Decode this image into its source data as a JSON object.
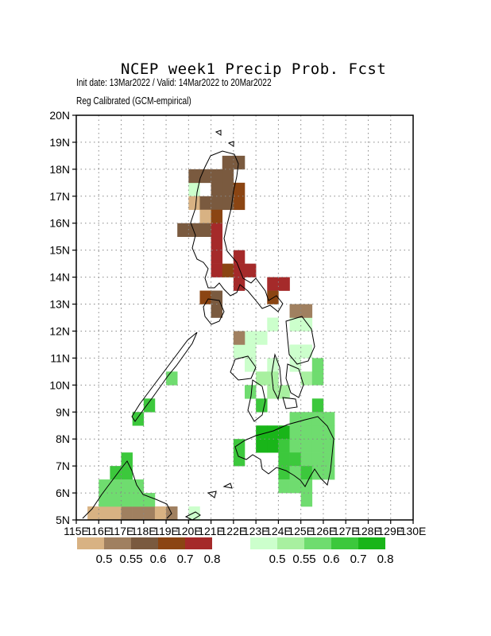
{
  "title": "NCEP week1 Precip Prob. Fcst",
  "subtitle": "Init date: 13Mar2022 / Valid: 14Mar2022 to 20Mar2022",
  "method": "Reg Calibrated (GCM-empirical)",
  "map": {
    "lon_range": [
      115,
      130
    ],
    "lat_range": [
      5,
      20
    ],
    "grid": "dotted",
    "lat_ticks": [
      "5N",
      "6N",
      "7N",
      "8N",
      "9N",
      "10N",
      "11N",
      "12N",
      "13N",
      "14N",
      "15N",
      "16N",
      "17N",
      "18N",
      "19N",
      "20N"
    ],
    "lon_ticks": [
      "115E",
      "116E",
      "117E",
      "118E",
      "119E",
      "120E",
      "121E",
      "122E",
      "123E",
      "124E",
      "125E",
      "126E",
      "127E",
      "128E",
      "129E",
      "130E"
    ]
  },
  "legend_dry": {
    "colors": [
      "#d8b283",
      "#a08060",
      "#7a5a3f",
      "#8b4513",
      "#a52a2a"
    ],
    "labels": [
      "0.5",
      "0.55",
      "0.6",
      "0.7",
      "0.8"
    ]
  },
  "legend_wet": {
    "colors": [
      "#ccffcc",
      "#a8f0a0",
      "#6fdc6f",
      "#3cc83c",
      "#19b519"
    ],
    "labels": [
      "0.5",
      "0.55",
      "0.6",
      "0.7",
      "0.8"
    ]
  },
  "cells_dry": [
    [
      120.0,
      17.5,
      2
    ],
    [
      120.5,
      17.5,
      2
    ],
    [
      121.0,
      17.5,
      2
    ],
    [
      121.5,
      17.5,
      2
    ],
    [
      121.5,
      18.0,
      2
    ],
    [
      122.0,
      18.0,
      2
    ],
    [
      121.0,
      17.0,
      2
    ],
    [
      121.5,
      17.0,
      2
    ],
    [
      122.0,
      17.0,
      3
    ],
    [
      122.0,
      16.5,
      3
    ],
    [
      120.0,
      16.5,
      0
    ],
    [
      120.5,
      16.5,
      2
    ],
    [
      121.0,
      16.5,
      2
    ],
    [
      121.5,
      16.5,
      2
    ],
    [
      120.5,
      16.0,
      0
    ],
    [
      121.0,
      16.0,
      3
    ],
    [
      119.5,
      15.5,
      2
    ],
    [
      120.0,
      15.5,
      2
    ],
    [
      120.5,
      15.5,
      2
    ],
    [
      121.0,
      15.5,
      4
    ],
    [
      121.0,
      15.0,
      4
    ],
    [
      121.0,
      14.5,
      4
    ],
    [
      121.0,
      14.0,
      4
    ],
    [
      121.5,
      14.0,
      3
    ],
    [
      122.0,
      14.0,
      4
    ],
    [
      122.5,
      14.0,
      4
    ],
    [
      122.0,
      14.5,
      4
    ],
    [
      122.0,
      13.5,
      4
    ],
    [
      123.5,
      13.5,
      4
    ],
    [
      124.0,
      13.5,
      4
    ],
    [
      120.5,
      13.0,
      3
    ],
    [
      121.0,
      13.0,
      2
    ],
    [
      123.5,
      13.0,
      3
    ],
    [
      121.0,
      12.5,
      2
    ],
    [
      124.5,
      12.5,
      1
    ],
    [
      125.0,
      12.5,
      1
    ],
    [
      122.0,
      11.5,
      1
    ]
  ],
  "cells_wet": [
    [
      120.0,
      17.0,
      0
    ],
    [
      123.5,
      12.0,
      0
    ],
    [
      124.5,
      12.0,
      0
    ],
    [
      125.0,
      12.0,
      0
    ],
    [
      122.0,
      11.5,
      1
    ],
    [
      122.5,
      11.5,
      0
    ],
    [
      123.0,
      11.5,
      0
    ],
    [
      122.0,
      11.0,
      0
    ],
    [
      122.5,
      11.0,
      0
    ],
    [
      124.5,
      11.0,
      0
    ],
    [
      125.0,
      11.0,
      0
    ],
    [
      122.5,
      10.5,
      0
    ],
    [
      123.5,
      10.5,
      0
    ],
    [
      124.5,
      10.5,
      0
    ],
    [
      125.5,
      10.5,
      2
    ],
    [
      119.0,
      10.0,
      2
    ],
    [
      123.0,
      10.0,
      1
    ],
    [
      123.5,
      10.0,
      1
    ],
    [
      125.0,
      10.0,
      1
    ],
    [
      125.5,
      10.0,
      2
    ],
    [
      122.5,
      9.5,
      2
    ],
    [
      123.5,
      9.5,
      1
    ],
    [
      124.0,
      9.5,
      1
    ],
    [
      118.0,
      9.0,
      3
    ],
    [
      123.0,
      9.0,
      3
    ],
    [
      125.5,
      9.0,
      3
    ],
    [
      117.5,
      8.5,
      3
    ],
    [
      124.5,
      8.5,
      2
    ],
    [
      125.0,
      8.5,
      2
    ],
    [
      125.5,
      8.5,
      2
    ],
    [
      126.0,
      8.5,
      2
    ],
    [
      123.0,
      8.0,
      4
    ],
    [
      123.5,
      8.0,
      4
    ],
    [
      124.0,
      8.0,
      4
    ],
    [
      124.5,
      8.0,
      2
    ],
    [
      125.0,
      8.0,
      2
    ],
    [
      125.5,
      8.0,
      2
    ],
    [
      126.0,
      8.0,
      2
    ],
    [
      122.0,
      7.5,
      3
    ],
    [
      123.0,
      7.5,
      4
    ],
    [
      123.5,
      7.5,
      4
    ],
    [
      124.0,
      7.5,
      3
    ],
    [
      124.5,
      7.5,
      2
    ],
    [
      125.0,
      7.5,
      2
    ],
    [
      125.5,
      7.5,
      2
    ],
    [
      126.0,
      7.5,
      2
    ],
    [
      117.0,
      7.0,
      3
    ],
    [
      122.0,
      7.0,
      3
    ],
    [
      124.0,
      7.0,
      3
    ],
    [
      124.5,
      7.0,
      3
    ],
    [
      125.0,
      7.0,
      2
    ],
    [
      125.5,
      7.0,
      2
    ],
    [
      126.0,
      7.0,
      2
    ],
    [
      116.5,
      6.5,
      3
    ],
    [
      117.0,
      6.5,
      3
    ],
    [
      124.0,
      6.5,
      3
    ],
    [
      124.5,
      6.5,
      2
    ],
    [
      125.0,
      6.5,
      3
    ],
    [
      125.5,
      6.5,
      2
    ],
    [
      126.0,
      6.5,
      2
    ],
    [
      116.0,
      6.0,
      2
    ],
    [
      116.5,
      6.0,
      2
    ],
    [
      117.0,
      6.0,
      2
    ],
    [
      117.5,
      6.0,
      2
    ],
    [
      124.0,
      6.0,
      2
    ],
    [
      124.5,
      6.0,
      2
    ],
    [
      125.0,
      6.0,
      2
    ],
    [
      116.0,
      5.5,
      2
    ],
    [
      116.5,
      5.5,
      2
    ],
    [
      117.0,
      5.5,
      2
    ],
    [
      117.5,
      5.5,
      2
    ],
    [
      118.0,
      5.5,
      2
    ],
    [
      125.0,
      5.5,
      2
    ],
    [
      120.0,
      5.0,
      0
    ]
  ],
  "cells_dry_low": [
    [
      115.5,
      5.0,
      0
    ],
    [
      116.0,
      5.0,
      0
    ],
    [
      116.5,
      5.0,
      0
    ],
    [
      117.0,
      5.0,
      1
    ],
    [
      117.5,
      5.0,
      1
    ],
    [
      118.0,
      5.0,
      1
    ],
    [
      118.5,
      5.0,
      0
    ],
    [
      119.0,
      5.0,
      1
    ]
  ]
}
